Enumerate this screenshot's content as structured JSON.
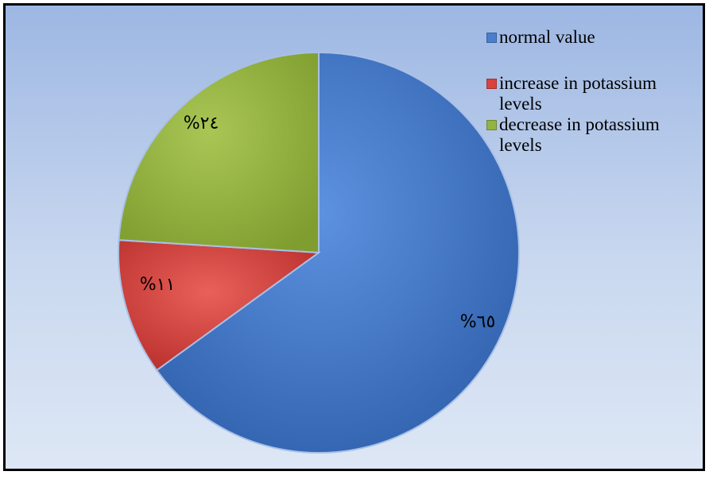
{
  "chart_data": {
    "type": "pie",
    "categories": [
      "normal value",
      "increase in potassium levels",
      "decrease in potassium levels"
    ],
    "values": [
      65,
      11,
      24
    ],
    "data_labels": [
      "%٦٥",
      "%١١",
      "%٢٤"
    ],
    "colors": [
      "#4a7fcf",
      "#d9423e",
      "#93b440"
    ],
    "legend_position": "top-right"
  }
}
